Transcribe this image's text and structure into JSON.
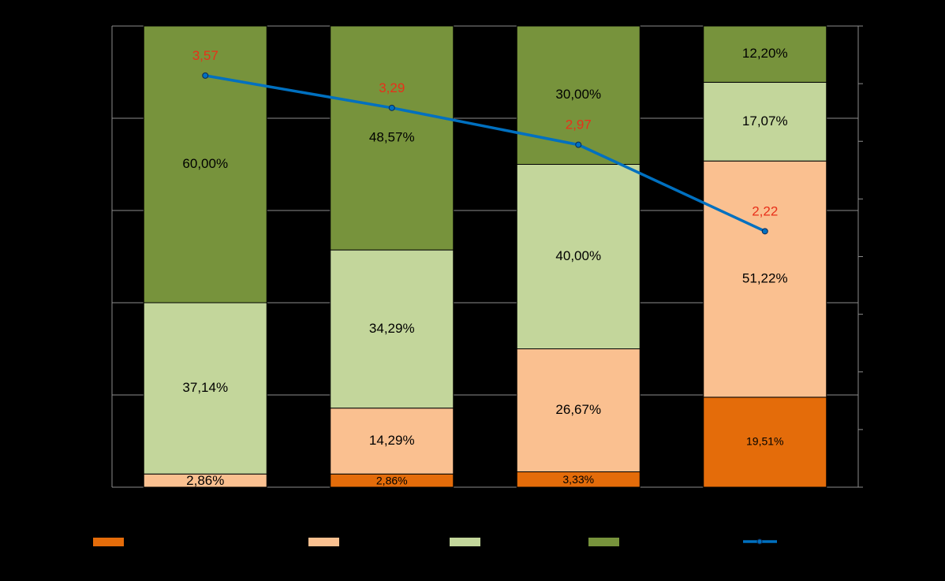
{
  "chart_data": {
    "type": "bar",
    "stacked": true,
    "categories": [
      "",
      "",
      "",
      ""
    ],
    "series": [
      {
        "color": "#e46c0a",
        "values": [
          0,
          2.86,
          3.33,
          19.51
        ],
        "labels": [
          "",
          "2,86%",
          "3,33%",
          "19,51%"
        ]
      },
      {
        "color": "#fac090",
        "values": [
          2.86,
          14.29,
          26.67,
          51.22
        ],
        "labels": [
          "2,86%",
          "14,29%",
          "26,67%",
          "51,22%"
        ]
      },
      {
        "color": "#c3d69b",
        "values": [
          37.14,
          34.29,
          40.0,
          17.07
        ],
        "labels": [
          "37,14%",
          "34,29%",
          "40,00%",
          "17,07%"
        ]
      },
      {
        "color": "#77933c",
        "values": [
          60.0,
          48.57,
          30.0,
          12.2
        ],
        "labels": [
          "60,00%",
          "48,57%",
          "30,00%",
          "12,20%"
        ]
      }
    ],
    "line": {
      "color": "#0070c0",
      "values": [
        3.57,
        3.29,
        2.97,
        2.22
      ],
      "labels": [
        "3,57",
        "3,29",
        "2,97",
        "2,22"
      ],
      "label_color": "#e8301a"
    },
    "ylim": [
      0,
      100
    ],
    "y2lim": [
      0,
      4
    ],
    "grid": true,
    "legend": "bottom",
    "background": "#000000"
  }
}
